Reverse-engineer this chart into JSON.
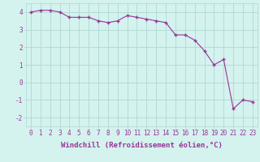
{
  "x": [
    0,
    1,
    2,
    3,
    4,
    5,
    6,
    7,
    8,
    9,
    10,
    11,
    12,
    13,
    14,
    15,
    16,
    17,
    18,
    19,
    20,
    21,
    22,
    23
  ],
  "y": [
    4.0,
    4.1,
    4.1,
    4.0,
    3.7,
    3.7,
    3.7,
    3.5,
    3.4,
    3.5,
    3.8,
    3.7,
    3.6,
    3.5,
    3.4,
    2.7,
    2.7,
    2.4,
    1.8,
    1.0,
    1.3,
    -1.5,
    -1.0,
    -1.1
  ],
  "line_color": "#993399",
  "marker": "P",
  "xlabel": "Windchill (Refroidissement éolien,°C)",
  "xlim": [
    -0.5,
    23.5
  ],
  "ylim": [
    -2.5,
    4.5
  ],
  "yticks": [
    -2,
    -1,
    0,
    1,
    2,
    3,
    4
  ],
  "xtick_labels": [
    "0",
    "1",
    "2",
    "3",
    "4",
    "5",
    "6",
    "7",
    "8",
    "9",
    "10",
    "11",
    "12",
    "13",
    "14",
    "15",
    "16",
    "17",
    "18",
    "19",
    "20",
    "21",
    "22",
    "23"
  ],
  "bg_color": "#d4f2ee",
  "grid_color": "#b0d8d4",
  "label_fontsize": 6.5,
  "tick_fontsize": 5.5
}
